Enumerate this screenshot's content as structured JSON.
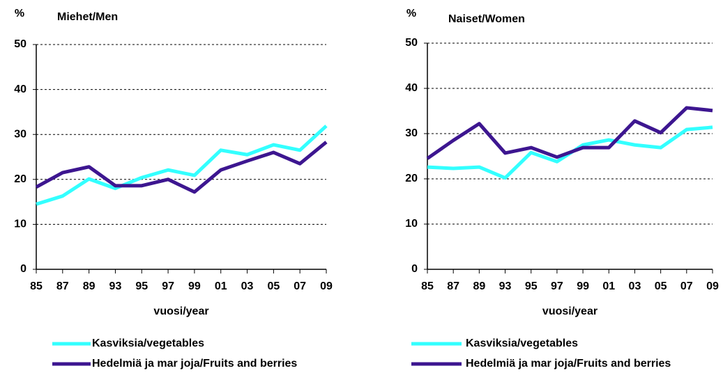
{
  "chart_data": [
    {
      "type": "line",
      "title": "Miehet/Men",
      "y_label": "%",
      "x_label": "vuosi/year",
      "categories": [
        "85",
        "87",
        "89",
        "93",
        "95",
        "97",
        "99",
        "01",
        "03",
        "05",
        "07",
        "09"
      ],
      "ylim": [
        0,
        50
      ],
      "yticks": [
        0,
        10,
        20,
        30,
        40,
        50
      ],
      "grid": true,
      "series": [
        {
          "name": "Kasviksia/vegetables",
          "color": "#33ffff",
          "values": [
            14.5,
            16.3,
            20.1,
            18,
            20.4,
            22.1,
            20.9,
            26.5,
            25.5,
            27.7,
            26.5,
            31.9
          ]
        },
        {
          "name": "Hedelmiä ja mar joja/Fruits and berries",
          "color": "#3d1690",
          "values": [
            18.3,
            21.5,
            22.8,
            18.6,
            18.6,
            20,
            17.2,
            22.1,
            24.1,
            26,
            23.5,
            28.3
          ]
        }
      ]
    },
    {
      "type": "line",
      "title": "Naiset/Women",
      "y_label": "%",
      "x_label": "vuosi/year",
      "categories": [
        "85",
        "87",
        "89",
        "93",
        "95",
        "97",
        "99",
        "01",
        "03",
        "05",
        "07",
        "09"
      ],
      "ylim": [
        0,
        50
      ],
      "yticks": [
        0,
        10,
        20,
        30,
        40,
        50
      ],
      "grid": true,
      "series": [
        {
          "name": "Kasviksia/vegetables",
          "color": "#33ffff",
          "values": [
            22.6,
            22.3,
            22.6,
            20.2,
            25.8,
            23.8,
            27.5,
            28.6,
            27.5,
            26.9,
            30.9,
            31.4
          ]
        },
        {
          "name": "Hedelmiä ja mar joja/Fruits and berries",
          "color": "#3d1690",
          "values": [
            24.5,
            28.5,
            32.2,
            25.7,
            26.9,
            24.8,
            26.9,
            26.9,
            32.8,
            30.2,
            35.7,
            35.1
          ]
        }
      ]
    }
  ]
}
